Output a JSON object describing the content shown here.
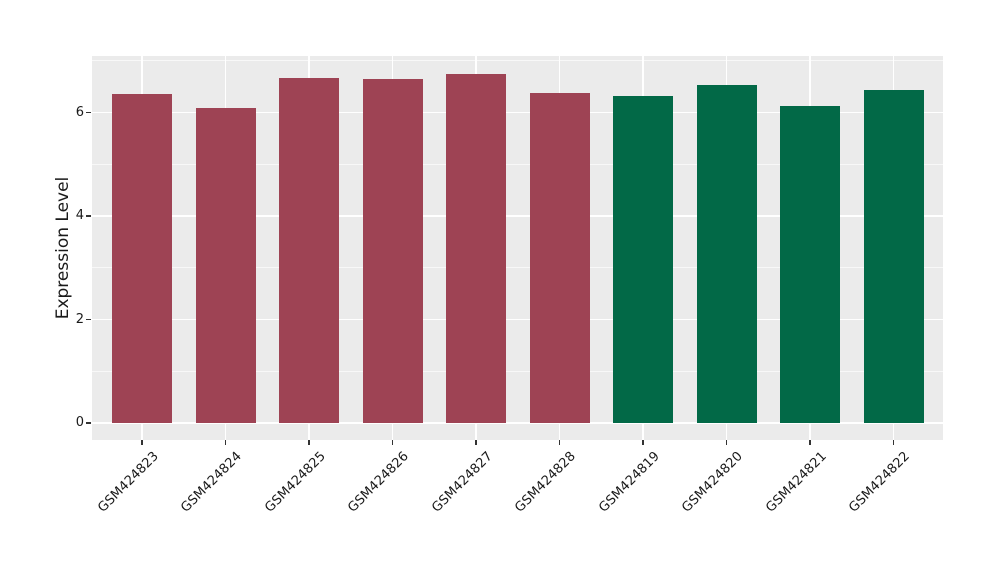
{
  "figure": {
    "background": "#FFFFFF",
    "panel_background": "#EBEBEB",
    "grid_color": "#FFFFFF",
    "tick_mark_color": "#333333",
    "text_color": "#1A1A1A"
  },
  "chart_data": {
    "type": "bar",
    "title": "",
    "xlabel": "",
    "ylabel": "Expression Level",
    "categories": [
      "GSM424823",
      "GSM424824",
      "GSM424825",
      "GSM424826",
      "GSM424827",
      "GSM424828",
      "GSM424819",
      "GSM424820",
      "GSM424821",
      "GSM424822"
    ],
    "values": [
      6.36,
      6.09,
      6.67,
      6.64,
      6.74,
      6.37,
      6.32,
      6.54,
      6.12,
      6.44
    ],
    "bar_colors": [
      "#9E4354",
      "#9E4354",
      "#9E4354",
      "#9E4354",
      "#9E4354",
      "#9E4354",
      "#026947",
      "#026947",
      "#026947",
      "#026947"
    ],
    "group_colors": {
      "maroon": "#9E4354",
      "green": "#026947"
    },
    "yticks": [
      0,
      2,
      4,
      6
    ],
    "minor_yticks": [
      1,
      3,
      5,
      7
    ],
    "ylim": [
      -0.33,
      7.09
    ],
    "grid": true,
    "legend_position": "none",
    "x_tick_label_angle_deg": 45
  }
}
